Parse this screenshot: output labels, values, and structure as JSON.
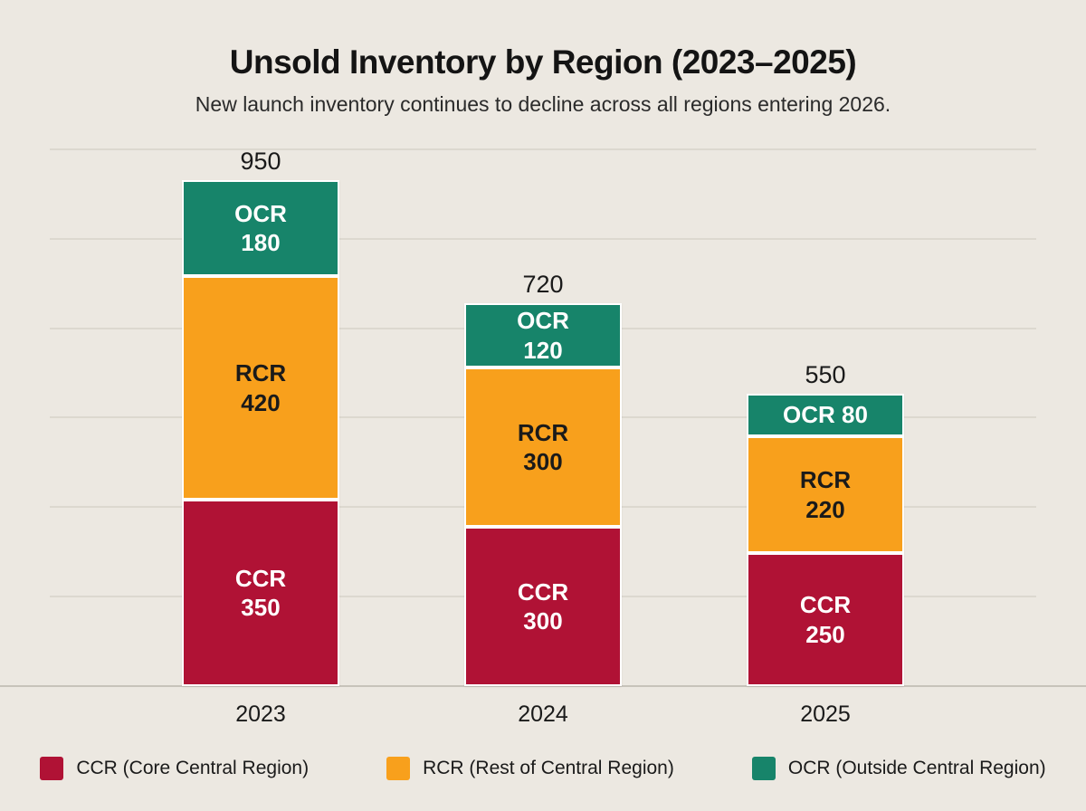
{
  "title": "Unsold Inventory by Region (2023–2025)",
  "subtitle": "New launch inventory continues to decline across all regions entering 2026.",
  "chart_data": {
    "type": "bar",
    "stacked": true,
    "categories": [
      "2023",
      "2024",
      "2025"
    ],
    "series": [
      {
        "name": "CCR",
        "values": [
          350,
          300,
          250
        ],
        "color": "#B01235",
        "text_color": "#FFFFFF"
      },
      {
        "name": "RCR",
        "values": [
          420,
          300,
          220
        ],
        "color": "#F8A01C",
        "text_color": "#1A1A1A"
      },
      {
        "name": "OCR",
        "values": [
          180,
          120,
          80
        ],
        "color": "#17846A",
        "text_color": "#FFFFFF"
      }
    ],
    "totals": [
      950,
      720,
      550
    ],
    "xlabel": "",
    "ylabel": "",
    "ylim": [
      0,
      950
    ],
    "grid": true,
    "legend_position": "bottom"
  },
  "legend": {
    "items": [
      {
        "label": "CCR (Core Central Region)",
        "color": "#B01235"
      },
      {
        "label": "RCR (Rest of Central Region)",
        "color": "#F8A01C"
      },
      {
        "label": "OCR (Outside Central Region)",
        "color": "#17846A"
      }
    ]
  },
  "colors": {
    "background": "#ECE8E1",
    "gridline": "#DCD8CF",
    "baseline": "#C7C3BA",
    "title_text": "#141414",
    "body_text": "#1A1A1A"
  }
}
